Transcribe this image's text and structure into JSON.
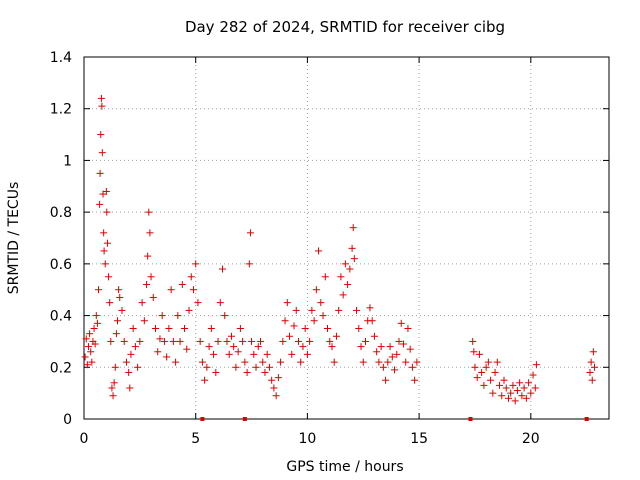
{
  "chart_data": {
    "type": "scatter",
    "title": "Day 282 of 2024, SRMTID for receiver cibg",
    "xlabel": "GPS time / hours",
    "ylabel": "SRMTID / TECUs",
    "xlim": [
      0,
      23.5
    ],
    "ylim": [
      0,
      1.4
    ],
    "xticks": [
      0,
      5,
      10,
      15,
      20
    ],
    "yticks": [
      0,
      0.2,
      0.4,
      0.6,
      0.8,
      1,
      1.2,
      1.4
    ],
    "xtick_labels": [
      "0",
      "5",
      "10",
      "15",
      "20"
    ],
    "ytick_labels": [
      "0",
      "0.2",
      "0.4",
      "0.6",
      "0.8",
      "1",
      "1.2",
      "1.4"
    ],
    "grid": true,
    "marker": "+",
    "color": "#e00000",
    "gap_markers_x": [
      5.3,
      7.2,
      17.3,
      22.5
    ],
    "series": [
      {
        "name": "SRMTID",
        "points": [
          [
            0.05,
            0.24
          ],
          [
            0.1,
            0.31
          ],
          [
            0.15,
            0.21
          ],
          [
            0.2,
            0.28
          ],
          [
            0.25,
            0.33
          ],
          [
            0.3,
            0.26
          ],
          [
            0.35,
            0.22
          ],
          [
            0.4,
            0.3
          ],
          [
            0.45,
            0.35
          ],
          [
            0.5,
            0.29
          ],
          [
            0.55,
            0.4
          ],
          [
            0.6,
            0.37
          ],
          [
            0.65,
            0.5
          ],
          [
            0.7,
            0.83
          ],
          [
            0.72,
            0.95
          ],
          [
            0.75,
            1.1
          ],
          [
            0.78,
            1.24
          ],
          [
            0.8,
            1.21
          ],
          [
            0.82,
            1.03
          ],
          [
            0.85,
            0.87
          ],
          [
            0.88,
            0.72
          ],
          [
            0.9,
            0.65
          ],
          [
            0.95,
            0.6
          ],
          [
            1.0,
            0.88
          ],
          [
            1.02,
            0.8
          ],
          [
            1.05,
            0.68
          ],
          [
            1.1,
            0.55
          ],
          [
            1.15,
            0.45
          ],
          [
            1.2,
            0.3
          ],
          [
            1.25,
            0.12
          ],
          [
            1.3,
            0.09
          ],
          [
            1.35,
            0.14
          ],
          [
            1.4,
            0.2
          ],
          [
            1.45,
            0.33
          ],
          [
            1.5,
            0.38
          ],
          [
            1.55,
            0.5
          ],
          [
            1.6,
            0.47
          ],
          [
            1.7,
            0.42
          ],
          [
            1.8,
            0.3
          ],
          [
            1.9,
            0.22
          ],
          [
            2.0,
            0.18
          ],
          [
            2.05,
            0.12
          ],
          [
            2.1,
            0.25
          ],
          [
            2.2,
            0.35
          ],
          [
            2.3,
            0.28
          ],
          [
            2.4,
            0.2
          ],
          [
            2.5,
            0.3
          ],
          [
            2.6,
            0.45
          ],
          [
            2.7,
            0.38
          ],
          [
            2.8,
            0.52
          ],
          [
            2.85,
            0.63
          ],
          [
            2.9,
            0.8
          ],
          [
            2.95,
            0.72
          ],
          [
            3.0,
            0.55
          ],
          [
            3.1,
            0.47
          ],
          [
            3.2,
            0.35
          ],
          [
            3.3,
            0.26
          ],
          [
            3.4,
            0.31
          ],
          [
            3.5,
            0.4
          ],
          [
            3.6,
            0.3
          ],
          [
            3.7,
            0.24
          ],
          [
            3.8,
            0.35
          ],
          [
            3.9,
            0.5
          ],
          [
            4.0,
            0.3
          ],
          [
            4.1,
            0.22
          ],
          [
            4.2,
            0.4
          ],
          [
            4.3,
            0.3
          ],
          [
            4.4,
            0.52
          ],
          [
            4.5,
            0.35
          ],
          [
            4.6,
            0.27
          ],
          [
            4.7,
            0.42
          ],
          [
            4.8,
            0.55
          ],
          [
            4.9,
            0.5
          ],
          [
            5.0,
            0.6
          ],
          [
            5.1,
            0.45
          ],
          [
            5.2,
            0.3
          ],
          [
            5.3,
            0.22
          ],
          [
            5.4,
            0.15
          ],
          [
            5.5,
            0.2
          ],
          [
            5.6,
            0.28
          ],
          [
            5.7,
            0.35
          ],
          [
            5.8,
            0.25
          ],
          [
            5.9,
            0.18
          ],
          [
            6.0,
            0.3
          ],
          [
            6.1,
            0.45
          ],
          [
            6.2,
            0.58
          ],
          [
            6.3,
            0.4
          ],
          [
            6.4,
            0.3
          ],
          [
            6.5,
            0.25
          ],
          [
            6.6,
            0.32
          ],
          [
            6.7,
            0.28
          ],
          [
            6.8,
            0.2
          ],
          [
            6.9,
            0.26
          ],
          [
            7.0,
            0.35
          ],
          [
            7.1,
            0.3
          ],
          [
            7.2,
            0.22
          ],
          [
            7.3,
            0.18
          ],
          [
            7.4,
            0.6
          ],
          [
            7.45,
            0.72
          ],
          [
            7.5,
            0.3
          ],
          [
            7.6,
            0.25
          ],
          [
            7.7,
            0.2
          ],
          [
            7.8,
            0.28
          ],
          [
            7.9,
            0.3
          ],
          [
            8.0,
            0.22
          ],
          [
            8.1,
            0.18
          ],
          [
            8.2,
            0.25
          ],
          [
            8.3,
            0.2
          ],
          [
            8.4,
            0.15
          ],
          [
            8.5,
            0.12
          ],
          [
            8.6,
            0.09
          ],
          [
            8.7,
            0.16
          ],
          [
            8.8,
            0.22
          ],
          [
            8.9,
            0.3
          ],
          [
            9.0,
            0.38
          ],
          [
            9.1,
            0.45
          ],
          [
            9.2,
            0.32
          ],
          [
            9.3,
            0.25
          ],
          [
            9.4,
            0.36
          ],
          [
            9.5,
            0.42
          ],
          [
            9.6,
            0.3
          ],
          [
            9.7,
            0.22
          ],
          [
            9.8,
            0.28
          ],
          [
            9.9,
            0.35
          ],
          [
            10.0,
            0.25
          ],
          [
            10.1,
            0.3
          ],
          [
            10.2,
            0.42
          ],
          [
            10.3,
            0.38
          ],
          [
            10.4,
            0.5
          ],
          [
            10.5,
            0.65
          ],
          [
            10.6,
            0.45
          ],
          [
            10.7,
            0.4
          ],
          [
            10.8,
            0.55
          ],
          [
            10.9,
            0.35
          ],
          [
            11.0,
            0.3
          ],
          [
            11.1,
            0.28
          ],
          [
            11.2,
            0.22
          ],
          [
            11.3,
            0.32
          ],
          [
            11.4,
            0.42
          ],
          [
            11.5,
            0.55
          ],
          [
            11.6,
            0.48
          ],
          [
            11.7,
            0.6
          ],
          [
            11.8,
            0.52
          ],
          [
            11.9,
            0.58
          ],
          [
            12.0,
            0.66
          ],
          [
            12.05,
            0.74
          ],
          [
            12.1,
            0.62
          ],
          [
            12.2,
            0.42
          ],
          [
            12.3,
            0.35
          ],
          [
            12.4,
            0.28
          ],
          [
            12.5,
            0.22
          ],
          [
            12.6,
            0.3
          ],
          [
            12.7,
            0.38
          ],
          [
            12.8,
            0.43
          ],
          [
            12.9,
            0.38
          ],
          [
            13.0,
            0.32
          ],
          [
            13.1,
            0.26
          ],
          [
            13.2,
            0.22
          ],
          [
            13.3,
            0.28
          ],
          [
            13.4,
            0.2
          ],
          [
            13.5,
            0.15
          ],
          [
            13.6,
            0.22
          ],
          [
            13.7,
            0.28
          ],
          [
            13.8,
            0.24
          ],
          [
            13.9,
            0.19
          ],
          [
            14.0,
            0.25
          ],
          [
            14.1,
            0.3
          ],
          [
            14.2,
            0.37
          ],
          [
            14.3,
            0.29
          ],
          [
            14.4,
            0.22
          ],
          [
            14.5,
            0.35
          ],
          [
            14.6,
            0.27
          ],
          [
            14.7,
            0.2
          ],
          [
            14.8,
            0.15
          ],
          [
            14.9,
            0.22
          ],
          [
            17.4,
            0.3
          ],
          [
            17.45,
            0.26
          ],
          [
            17.5,
            0.2
          ],
          [
            17.6,
            0.16
          ],
          [
            17.7,
            0.25
          ],
          [
            17.8,
            0.18
          ],
          [
            17.9,
            0.13
          ],
          [
            18.0,
            0.2
          ],
          [
            18.1,
            0.22
          ],
          [
            18.2,
            0.15
          ],
          [
            18.3,
            0.1
          ],
          [
            18.4,
            0.18
          ],
          [
            18.5,
            0.22
          ],
          [
            18.6,
            0.13
          ],
          [
            18.7,
            0.09
          ],
          [
            18.8,
            0.15
          ],
          [
            18.9,
            0.12
          ],
          [
            19.0,
            0.08
          ],
          [
            19.1,
            0.1
          ],
          [
            19.2,
            0.13
          ],
          [
            19.3,
            0.07
          ],
          [
            19.4,
            0.11
          ],
          [
            19.5,
            0.14
          ],
          [
            19.6,
            0.09
          ],
          [
            19.7,
            0.12
          ],
          [
            19.8,
            0.08
          ],
          [
            19.9,
            0.14
          ],
          [
            20.0,
            0.1
          ],
          [
            20.1,
            0.17
          ],
          [
            20.2,
            0.12
          ],
          [
            20.25,
            0.21
          ],
          [
            22.65,
            0.18
          ],
          [
            22.7,
            0.22
          ],
          [
            22.75,
            0.15
          ],
          [
            22.8,
            0.26
          ],
          [
            22.85,
            0.2
          ]
        ]
      }
    ]
  }
}
